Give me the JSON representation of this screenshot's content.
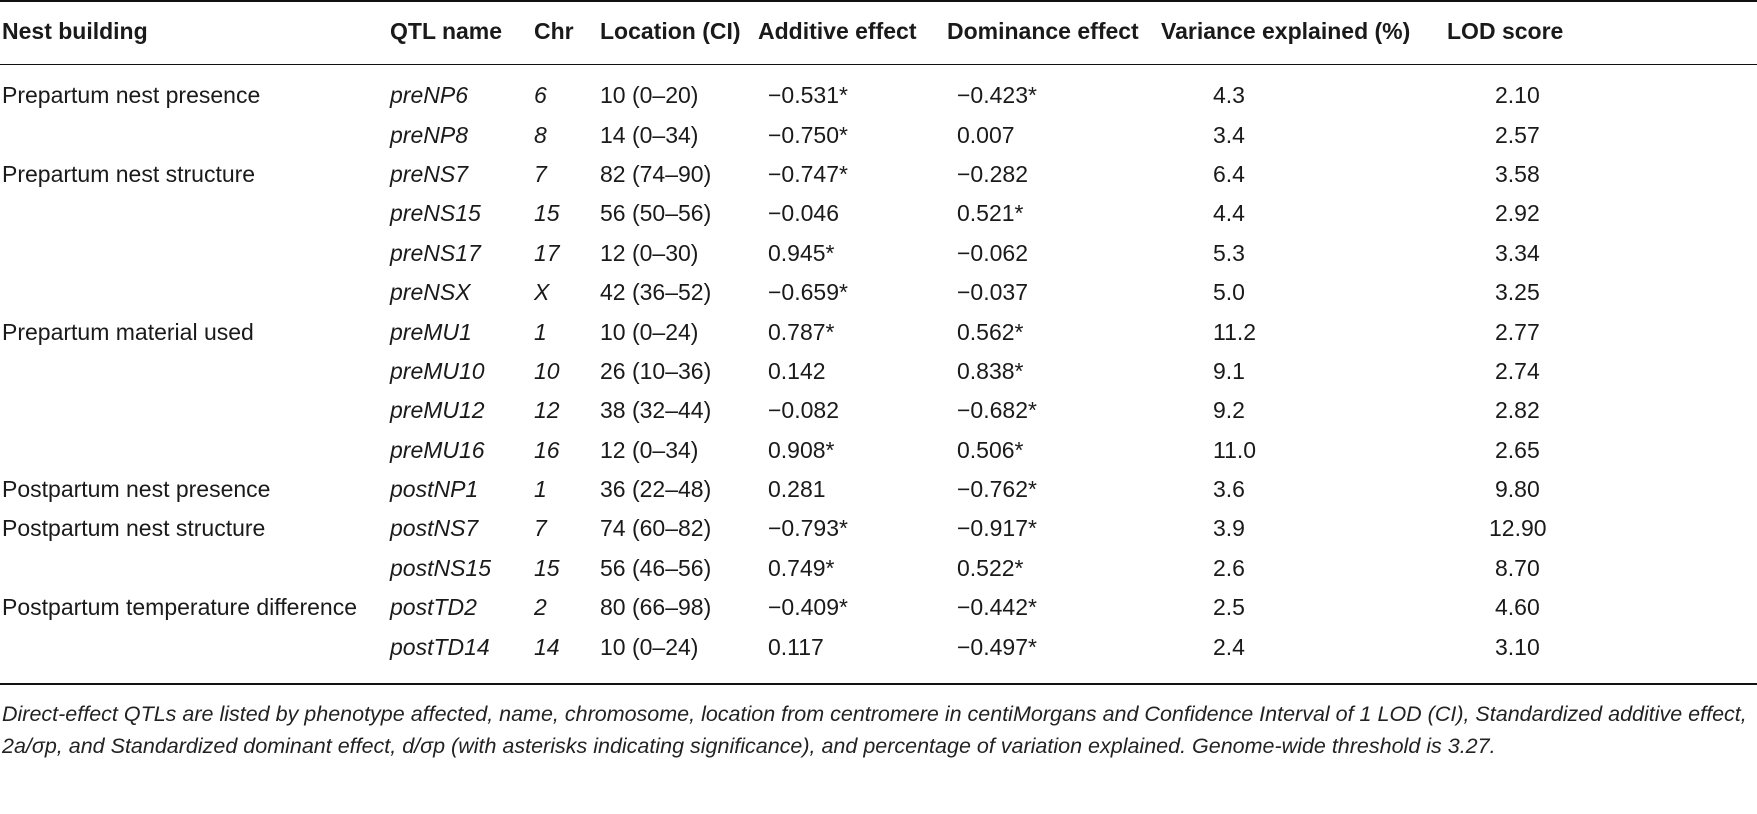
{
  "table": {
    "headers": {
      "trait": "Nest building",
      "qtl": "QTL name",
      "chr": "Chr",
      "location": "Location (CI)",
      "additive": "Additive effect",
      "dominance": "Dominance effect",
      "variance": "Variance explained (%)",
      "lod": "LOD score"
    },
    "rows": [
      {
        "trait": "Prepartum nest presence",
        "qtl": "preNP6",
        "chr": "6",
        "location": "10 (0–20)",
        "additive": "−0.531*",
        "dominance": "−0.423*",
        "variance": "4.3",
        "lod": "2.10"
      },
      {
        "trait": "",
        "qtl": "preNP8",
        "chr": "8",
        "location": "14 (0–34)",
        "additive": "−0.750*",
        "dominance": " 0.007",
        "variance": "3.4",
        "lod": "2.57"
      },
      {
        "trait": "Prepartum nest structure",
        "qtl": "preNS7",
        "chr": "7",
        "location": "82 (74–90)",
        "additive": "−0.747*",
        "dominance": "−0.282",
        "variance": "6.4",
        "lod": "3.58"
      },
      {
        "trait": "",
        "qtl": "preNS15",
        "chr": "15",
        "location": "56 (50–56)",
        "additive": "−0.046",
        "dominance": " 0.521*",
        "variance": "4.4",
        "lod": "2.92"
      },
      {
        "trait": "",
        "qtl": "preNS17",
        "chr": "17",
        "location": "12 (0–30)",
        "additive": " 0.945*",
        "dominance": "−0.062",
        "variance": "5.3",
        "lod": "3.34"
      },
      {
        "trait": "",
        "qtl": "preNSX",
        "chr": "X",
        "location": "42 (36–52)",
        "additive": "−0.659*",
        "dominance": "−0.037",
        "variance": "5.0",
        "lod": "3.25"
      },
      {
        "trait": "Prepartum material used",
        "qtl": "preMU1",
        "chr": "1",
        "location": "10 (0–24)",
        "additive": " 0.787*",
        "dominance": " 0.562*",
        "variance": "11.2",
        "lod": "2.77"
      },
      {
        "trait": "",
        "qtl": "preMU10",
        "chr": "10",
        "location": "26 (10–36)",
        "additive": " 0.142",
        "dominance": " 0.838*",
        "variance": "9.1",
        "lod": "2.74"
      },
      {
        "trait": "",
        "qtl": "preMU12",
        "chr": "12",
        "location": "38 (32–44)",
        "additive": "−0.082",
        "dominance": "−0.682*",
        "variance": "9.2",
        "lod": "2.82"
      },
      {
        "trait": "",
        "qtl": "preMU16",
        "chr": "16",
        "location": "12 (0–34)",
        "additive": " 0.908*",
        "dominance": " 0.506*",
        "variance": "11.0",
        "lod": "2.65"
      },
      {
        "trait": "Postpartum nest presence",
        "qtl": "postNP1",
        "chr": "1",
        "location": "36 (22–48)",
        "additive": " 0.281",
        "dominance": "−0.762*",
        "variance": "3.6",
        "lod": "9.80"
      },
      {
        "trait": "Postpartum nest structure",
        "qtl": "postNS7",
        "chr": "7",
        "location": "74 (60–82)",
        "additive": "−0.793*",
        "dominance": "−0.917*",
        "variance": "3.9",
        "lod": "12.90"
      },
      {
        "trait": "",
        "qtl": "postNS15",
        "chr": "15",
        "location": "56 (46–56)",
        "additive": " 0.749*",
        "dominance": " 0.522*",
        "variance": "2.6",
        "lod": "8.70"
      },
      {
        "trait": "Postpartum temperature difference",
        "qtl": "postTD2",
        "chr": "2",
        "location": "80 (66–98)",
        "additive": "−0.409*",
        "dominance": "−0.442*",
        "variance": "2.5",
        "lod": "4.60"
      },
      {
        "trait": "",
        "qtl": "postTD14",
        "chr": "14",
        "location": "10 (0–24)",
        "additive": " 0.117",
        "dominance": "−0.497*",
        "variance": "2.4",
        "lod": "3.10"
      }
    ]
  },
  "caption": "Direct-effect QTLs are listed by phenotype affected, name, chromosome, location from centromere in centiMorgans and Confidence Interval of 1 LOD (CI), Standardized additive effect, 2a/σp, and Standardized dominant effect, d/σp (with asterisks indicating significance), and percentage of variation explained. Genome-wide threshold is 3.27."
}
